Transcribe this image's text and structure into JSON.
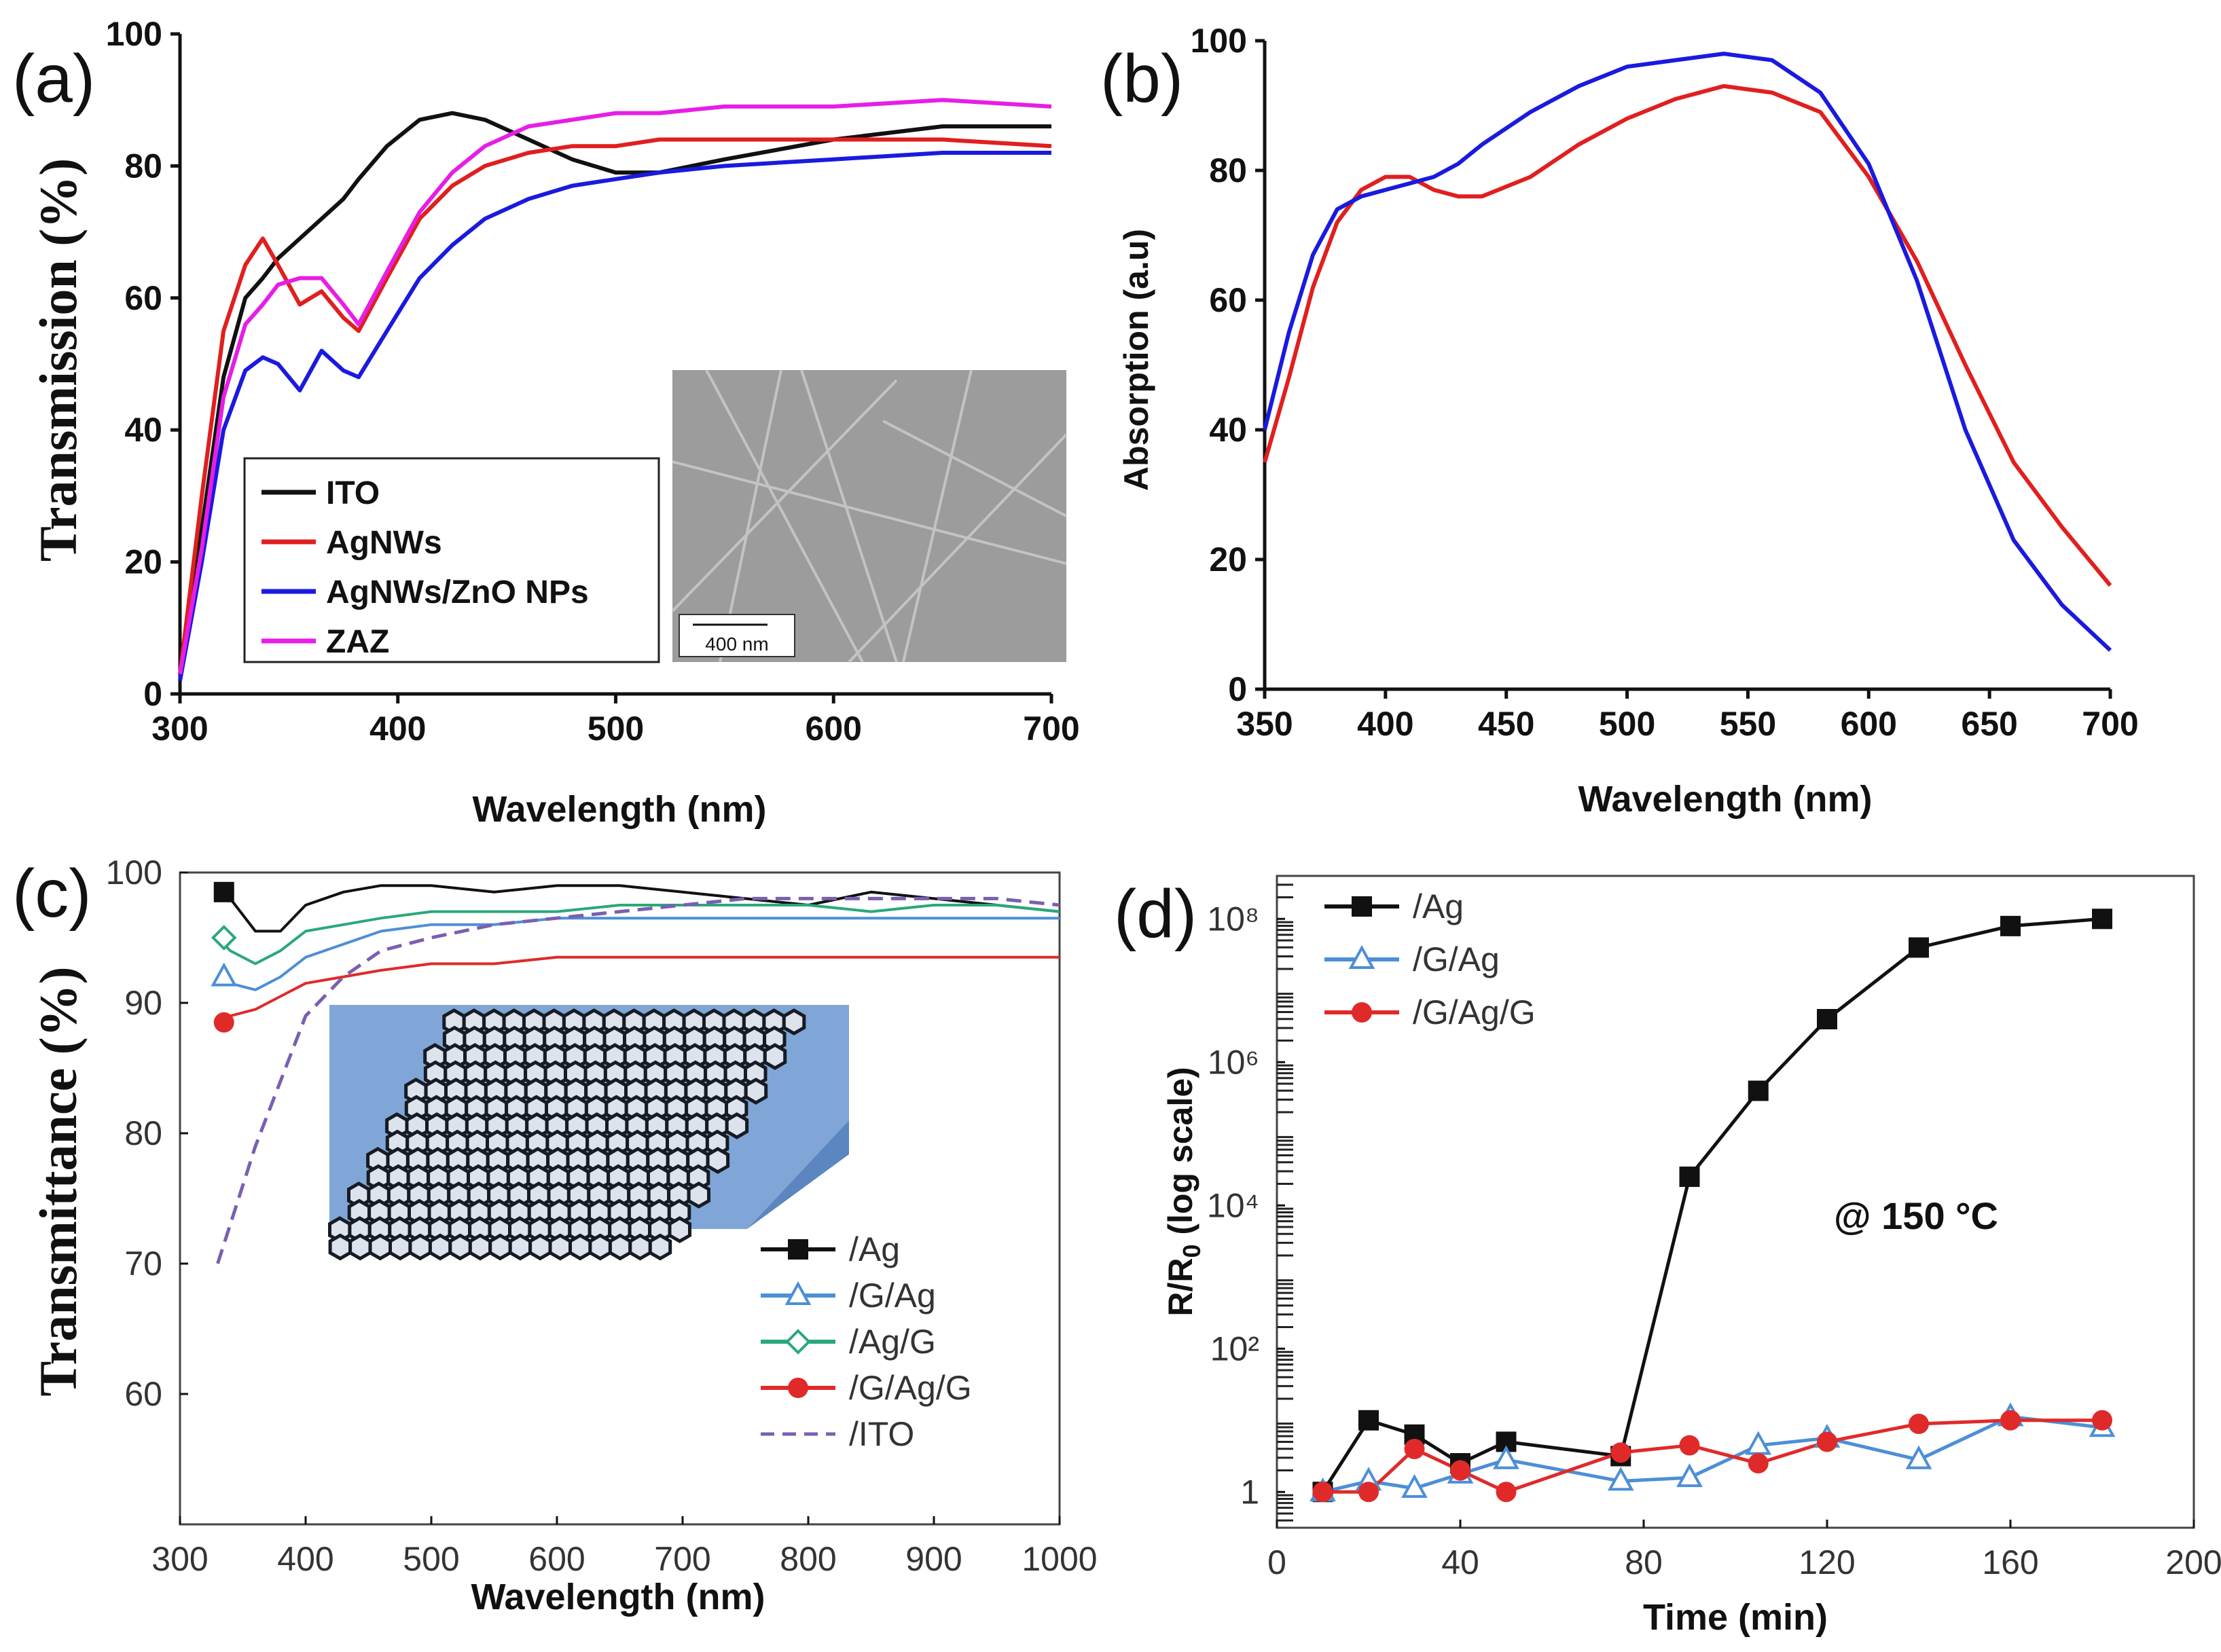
{
  "chart_data": [
    {
      "panel": "(a)",
      "type": "line",
      "xlabel": "Wavelength (nm)",
      "ylabel": "Transmission (%)",
      "xlim": [
        300,
        700
      ],
      "ylim": [
        0,
        100
      ],
      "xticks": [
        300,
        400,
        500,
        600,
        700
      ],
      "yticks": [
        0,
        20,
        40,
        60,
        80,
        100
      ],
      "x": [
        300,
        310,
        320,
        330,
        338,
        345,
        355,
        365,
        375,
        382,
        395,
        410,
        425,
        440,
        460,
        480,
        500,
        520,
        550,
        600,
        650,
        700
      ],
      "series": [
        {
          "name": "ITO",
          "color": "#111111",
          "values": [
            3,
            25,
            48,
            60,
            63,
            66,
            69,
            72,
            75,
            78,
            83,
            87,
            88,
            87,
            84,
            81,
            79,
            79,
            81,
            84,
            86,
            86
          ]
        },
        {
          "name": "AgNWs",
          "color": "#e01f1f",
          "values": [
            3,
            30,
            55,
            65,
            69,
            65,
            59,
            61,
            57,
            55,
            63,
            72,
            77,
            80,
            82,
            83,
            83,
            84,
            84,
            84,
            84,
            83
          ]
        },
        {
          "name": "AgNWs/ZnO NPs",
          "color": "#1a1adf",
          "values": [
            2,
            20,
            40,
            49,
            51,
            50,
            46,
            52,
            49,
            48,
            55,
            63,
            68,
            72,
            75,
            77,
            78,
            79,
            80,
            81,
            82,
            82
          ]
        },
        {
          "name": "ZAZ",
          "color": "#e61ee6",
          "values": [
            3,
            22,
            45,
            56,
            59,
            62,
            63,
            63,
            59,
            56,
            64,
            73,
            79,
            83,
            86,
            87,
            88,
            88,
            89,
            89,
            90,
            89
          ]
        }
      ],
      "inset": {
        "scale_bar": "400 nm"
      }
    },
    {
      "panel": "(b)",
      "type": "line",
      "xlabel": "Wavelength (nm)",
      "ylabel": "Absorption (a.u)",
      "xlim": [
        350,
        700
      ],
      "ylim": [
        0,
        100
      ],
      "xticks": [
        350,
        400,
        450,
        500,
        550,
        600,
        650,
        700
      ],
      "yticks": [
        0,
        20,
        40,
        60,
        80,
        100
      ],
      "x": [
        350,
        360,
        370,
        380,
        390,
        400,
        410,
        420,
        430,
        440,
        460,
        480,
        500,
        520,
        540,
        560,
        580,
        600,
        620,
        640,
        660,
        680,
        700
      ],
      "series": [
        {
          "name": "red",
          "color": "#e01f1f",
          "values": [
            35,
            48,
            62,
            72,
            77,
            79,
            79,
            77,
            76,
            76,
            79,
            84,
            88,
            91,
            93,
            92,
            89,
            79,
            66,
            50,
            35,
            25,
            16
          ]
        },
        {
          "name": "blue",
          "color": "#1a1adf",
          "values": [
            40,
            55,
            67,
            74,
            76,
            77,
            78,
            79,
            81,
            84,
            89,
            93,
            96,
            97,
            98,
            97,
            92,
            81,
            63,
            40,
            23,
            13,
            6
          ]
        }
      ]
    },
    {
      "panel": "(c)",
      "type": "line",
      "xlabel": "Wavelength (nm)",
      "ylabel": "Transmittance (%)",
      "xlim": [
        300,
        1000
      ],
      "ylim": [
        50,
        100
      ],
      "xticks": [
        300,
        400,
        500,
        600,
        700,
        800,
        900,
        1000
      ],
      "yticks": [
        60,
        70,
        80,
        90,
        100
      ],
      "x": [
        330,
        340,
        360,
        380,
        400,
        430,
        460,
        500,
        550,
        600,
        650,
        700,
        750,
        800,
        850,
        900,
        950,
        1000
      ],
      "series": [
        {
          "name": "/Ag",
          "color": "#111111",
          "marker": "square",
          "values": [
            98.5,
            98,
            95.5,
            95.5,
            97.5,
            98.5,
            99,
            99,
            98.5,
            99,
            99,
            98.5,
            98,
            97.5,
            98.5,
            98,
            97.5,
            97
          ]
        },
        {
          "name": "/G/Ag",
          "color": "#4c8fd6",
          "marker": "triangle",
          "values": [
            92,
            91.5,
            91,
            92,
            93.5,
            94.5,
            95.5,
            96,
            96,
            96.5,
            96.5,
            96.5,
            96.5,
            96.5,
            96.5,
            96.5,
            96.5,
            96.5
          ]
        },
        {
          "name": "/Ag/G",
          "color": "#2aa87a",
          "marker": "diamond",
          "values": [
            95,
            94,
            93,
            94,
            95.5,
            96,
            96.5,
            97,
            97,
            97,
            97.5,
            97.5,
            97.5,
            97.5,
            97,
            97.5,
            97.5,
            97
          ]
        },
        {
          "name": "/G/Ag/G",
          "color": "#e02a2a",
          "marker": "circle",
          "values": [
            88.5,
            89,
            89.5,
            90.5,
            91.5,
            92,
            92.5,
            93,
            93,
            93.5,
            93.5,
            93.5,
            93.5,
            93.5,
            93.5,
            93.5,
            93.5,
            93.5
          ]
        },
        {
          "name": "/ITO",
          "color": "#7a5fb0",
          "marker": "dash",
          "values": [
            70,
            73,
            79,
            84,
            89,
            92,
            94,
            95,
            96,
            96.5,
            97,
            97.5,
            98,
            98,
            98,
            98,
            98,
            97.5
          ]
        }
      ]
    },
    {
      "panel": "(d)",
      "type": "line",
      "xlabel": "Time (min)",
      "ylabel": "R/R0 (log scale)",
      "yscale": "log",
      "xlim": [
        0,
        200
      ],
      "ylim_log10": [
        -0.5,
        8.6
      ],
      "xticks": [
        0,
        40,
        80,
        120,
        160,
        200
      ],
      "yticks": [
        "1",
        "10²",
        "10⁴",
        "10⁶",
        "10⁸"
      ],
      "annotation": "@ 150 °C",
      "series": [
        {
          "name": "/Ag",
          "color": "#111111",
          "marker": "square",
          "x": [
            10,
            20,
            30,
            40,
            50,
            75,
            90,
            105,
            120,
            140,
            160,
            180
          ],
          "log10": [
            0,
            1,
            0.8,
            0.4,
            0.7,
            0.5,
            4.4,
            5.6,
            6.6,
            7.6,
            7.9,
            8.0
          ]
        },
        {
          "name": "/G/Ag",
          "color": "#4c8fd6",
          "marker": "triangle",
          "x": [
            10,
            20,
            30,
            40,
            50,
            75,
            90,
            105,
            120,
            140,
            160,
            180
          ],
          "log10": [
            0,
            0.15,
            0.05,
            0.25,
            0.45,
            0.15,
            0.2,
            0.65,
            0.75,
            0.45,
            1.05,
            0.9
          ]
        },
        {
          "name": "/G/Ag/G",
          "color": "#e02a2a",
          "marker": "circle",
          "x": [
            10,
            20,
            30,
            40,
            50,
            75,
            90,
            105,
            120,
            140,
            160,
            180
          ],
          "log10": [
            0,
            0,
            0.6,
            0.3,
            0,
            0.55,
            0.65,
            0.4,
            0.7,
            0.95,
            1.0,
            1.0
          ]
        }
      ]
    }
  ],
  "ylabel_d_parts": {
    "r": "R/R",
    "sub": "0",
    "rest": " (log scale)"
  }
}
